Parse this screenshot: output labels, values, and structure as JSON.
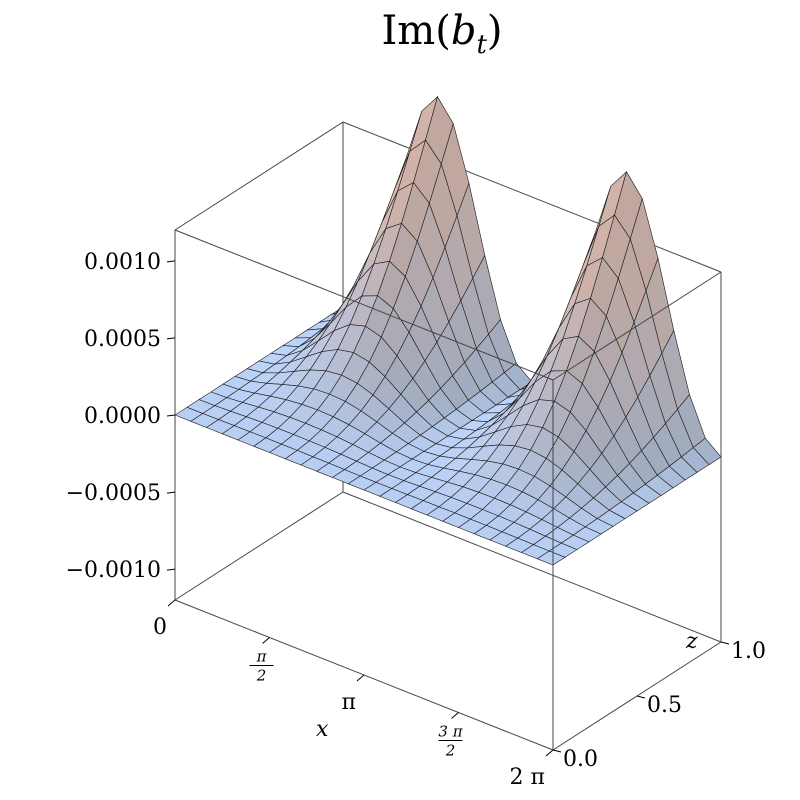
{
  "chart_data": {
    "type": "surface3d",
    "title_main": "Im(",
    "title_var": "b",
    "title_sub": "t",
    "title_close": ")",
    "xlabel": "x",
    "zlabel": "z",
    "x_range": [
      0,
      6.2832
    ],
    "z_range": [
      0,
      1
    ],
    "value_range": [
      -0.0012,
      0.0012
    ],
    "x_ticks": [
      {
        "value": 0,
        "label": "0"
      },
      {
        "value": 1.5708,
        "num": "π",
        "den": "2"
      },
      {
        "value": 3.1416,
        "label": "π"
      },
      {
        "value": 4.7124,
        "num": "3 π",
        "den": "2"
      },
      {
        "value": 6.2832,
        "label": "2 π"
      }
    ],
    "z_ticks": [
      {
        "value": 0.0,
        "label": "0.0"
      },
      {
        "value": 0.5,
        "label": "0.5"
      },
      {
        "value": 1.0,
        "label": "1.0"
      }
    ],
    "value_ticks": [
      {
        "value": 0.001,
        "label": "0.0010"
      },
      {
        "value": 0.0005,
        "label": "0.0005"
      },
      {
        "value": 0.0,
        "label": "0.0000"
      },
      {
        "value": -0.0005,
        "label": "−0.0005"
      },
      {
        "value": -0.001,
        "label": "−0.0010"
      }
    ],
    "surface": {
      "formula": "A·z²·sin²(x)·(1 − 0.35·cos(z·π)·sin²(x))",
      "amplitude": 0.00119,
      "x_steps": 24,
      "z_steps": 14
    },
    "grid": false,
    "box": true
  }
}
